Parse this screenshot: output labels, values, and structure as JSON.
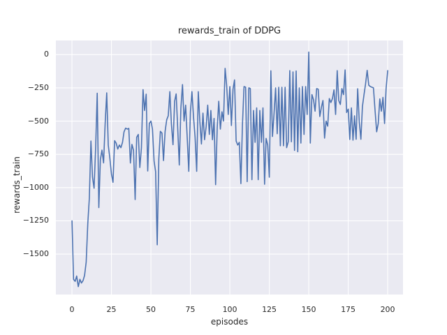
{
  "chart_data": {
    "type": "line",
    "title": "rewards_train of DDPG",
    "xlabel": "episodes",
    "ylabel": "rewards_train",
    "grid": true,
    "legend": "none",
    "xticks": [
      0,
      25,
      50,
      75,
      100,
      125,
      150,
      175,
      200
    ],
    "yticks": [
      0,
      -250,
      -500,
      -750,
      -1000,
      -1250,
      -1500
    ],
    "xlim": [
      -10.2,
      209.7
    ],
    "ylim": [
      -1804.3,
      106.6
    ],
    "colors": {
      "line": "#4C72B0",
      "plot_bg": "#EAEAF2",
      "grid": "#FFFFFF",
      "text": "#262626",
      "figure_bg": "#FFFFFF"
    },
    "x_start": 0,
    "x_step": 1,
    "series": [
      {
        "name": "rewards_train",
        "color": "#4C72B0",
        "values": [
          -1250,
          -1690,
          -1705,
          -1665,
          -1745,
          -1690,
          -1718,
          -1700,
          -1660,
          -1560,
          -1270,
          -1080,
          -650,
          -920,
          -1005,
          -690,
          -290,
          -1150,
          -790,
          -718,
          -814,
          -525,
          -287,
          -680,
          -780,
          -900,
          -960,
          -647,
          -665,
          -710,
          -680,
          -700,
          -660,
          -580,
          -553,
          -560,
          -555,
          -815,
          -675,
          -720,
          -1090,
          -621,
          -600,
          -849,
          -700,
          -263,
          -420,
          -297,
          -875,
          -517,
          -500,
          -560,
          -800,
          -880,
          -1430,
          -782,
          -577,
          -590,
          -797,
          -577,
          -490,
          -460,
          -278,
          -520,
          -677,
          -350,
          -295,
          -560,
          -830,
          -400,
          -225,
          -500,
          -380,
          -620,
          -877,
          -430,
          -278,
          -470,
          -620,
          -877,
          -278,
          -500,
          -672,
          -440,
          -640,
          -540,
          -380,
          -600,
          -420,
          -640,
          -480,
          -978,
          -550,
          -350,
          -560,
          -430,
          -500,
          -103,
          -230,
          -450,
          -240,
          -533,
          -260,
          -190,
          -650,
          -680,
          -660,
          -970,
          -530,
          -240,
          -245,
          -955,
          -250,
          -255,
          -940,
          -420,
          -660,
          -400,
          -940,
          -420,
          -660,
          -400,
          -975,
          -630,
          -680,
          -922,
          -121,
          -616,
          -450,
          -250,
          -595,
          -245,
          -685,
          -245,
          -685,
          -245,
          -700,
          -655,
          -120,
          -655,
          -130,
          -720,
          -123,
          -730,
          -250,
          -665,
          -240,
          -600,
          -240,
          -450,
          20,
          -665,
          -300,
          -340,
          -425,
          -255,
          -260,
          -465,
          -395,
          -345,
          -628,
          -500,
          -538,
          -330,
          -360,
          -330,
          -265,
          -450,
          -120,
          -345,
          -375,
          -255,
          -300,
          -115,
          -435,
          -410,
          -638,
          -400,
          -643,
          -460,
          -637,
          -256,
          -505,
          -637,
          -390,
          -300,
          -220,
          -118,
          -230,
          -240,
          -245,
          -250,
          -420,
          -580,
          -520,
          -333,
          -425,
          -322,
          -518,
          -255,
          -120
        ]
      }
    ]
  }
}
